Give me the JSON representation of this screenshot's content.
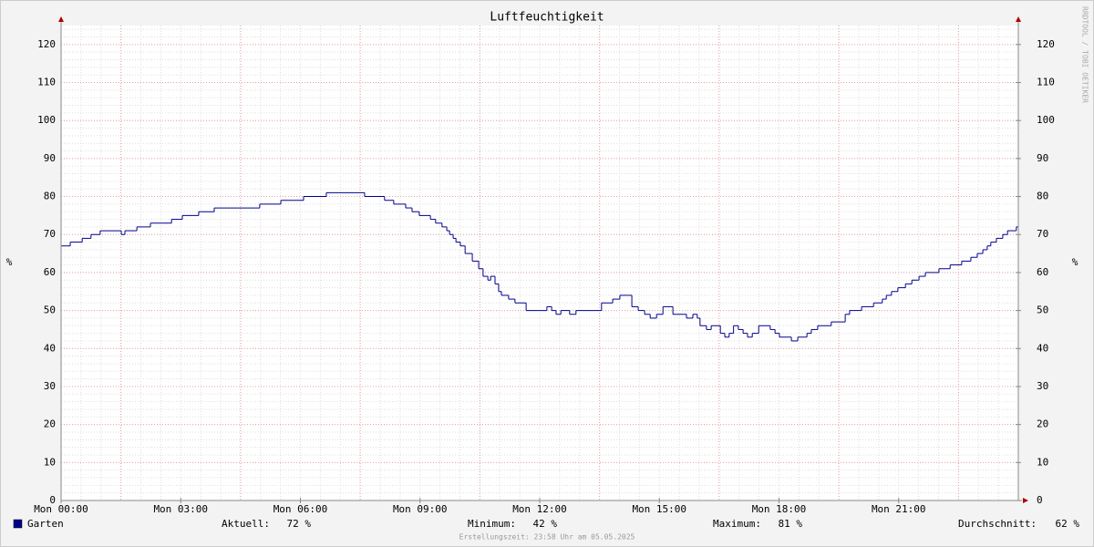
{
  "chart_data": {
    "type": "line",
    "title": "Luftfeuchtigkeit",
    "y_label": "%",
    "y2_label": "%",
    "watermark": "RRDTOOL / TOBI OETIKER",
    "x": [
      0,
      0.23,
      0.53,
      0.75,
      0.98,
      1.51,
      1.6,
      1.9,
      2.24,
      2.77,
      3.04,
      3.45,
      3.84,
      4.98,
      5.51,
      6.08,
      6.65,
      7.61,
      8.11,
      8.34,
      8.64,
      8.8,
      8.98,
      9.26,
      9.39,
      9.55,
      9.67,
      9.74,
      9.83,
      9.9,
      10.01,
      10.13,
      10.31,
      10.47,
      10.58,
      10.7,
      10.77,
      10.88,
      10.97,
      11.04,
      11.22,
      11.38,
      11.66,
      12.18,
      12.3,
      12.41,
      12.53,
      12.75,
      12.91,
      13.55,
      13.83,
      14.01,
      14.31,
      14.47,
      14.63,
      14.77,
      14.93,
      15.09,
      15.34,
      15.68,
      15.84,
      15.95,
      16.02,
      16.18,
      16.3,
      16.53,
      16.64,
      16.75,
      16.86,
      16.98,
      17.1,
      17.21,
      17.33,
      17.49,
      17.78,
      17.9,
      18.01,
      18.31,
      18.47,
      18.7,
      18.81,
      18.97,
      19.31,
      19.66,
      19.77,
      20.07,
      20.37,
      20.59,
      20.69,
      20.82,
      20.98,
      21.17,
      21.33,
      21.51,
      21.67,
      22.01,
      22.29,
      22.58,
      22.81,
      22.97,
      23.11,
      23.22,
      23.31,
      23.45,
      23.61,
      23.73,
      23.95
    ],
    "xlim": [
      0,
      24
    ],
    "xticks": [
      {
        "value": 0,
        "label": "Mon 00:00"
      },
      {
        "value": 3,
        "label": "Mon 03:00"
      },
      {
        "value": 6,
        "label": "Mon 06:00"
      },
      {
        "value": 9,
        "label": "Mon 09:00"
      },
      {
        "value": 12,
        "label": "Mon 12:00"
      },
      {
        "value": 15,
        "label": "Mon 15:00"
      },
      {
        "value": 18,
        "label": "Mon 18:00"
      },
      {
        "value": 21,
        "label": "Mon 21:00"
      }
    ],
    "ylim": [
      0,
      125
    ],
    "yticks": [
      0,
      10,
      20,
      30,
      40,
      50,
      60,
      70,
      80,
      90,
      100,
      110,
      120
    ],
    "y2lim": [
      0,
      125
    ],
    "y2ticks": [
      0,
      10,
      20,
      30,
      40,
      50,
      60,
      70,
      80,
      90,
      100,
      110,
      120
    ],
    "grid": true,
    "series": [
      {
        "name": "Garten",
        "color": "#00008b",
        "values": [
          67,
          68,
          69,
          70,
          71,
          70,
          71,
          72,
          73,
          74,
          75,
          76,
          77,
          78,
          79,
          80,
          81,
          80,
          79,
          78,
          77,
          76,
          75,
          74,
          73,
          72,
          71,
          70,
          69,
          68,
          67,
          65,
          63,
          61,
          59,
          58,
          59,
          57,
          55,
          54,
          53,
          52,
          50,
          51,
          50,
          49,
          50,
          49,
          50,
          52,
          53,
          54,
          51,
          50,
          49,
          48,
          49,
          51,
          49,
          48,
          49,
          48,
          46,
          45,
          46,
          44,
          43,
          44,
          46,
          45,
          44,
          43,
          44,
          46,
          45,
          44,
          43,
          42,
          43,
          44,
          45,
          46,
          47,
          49,
          50,
          51,
          52,
          53,
          54,
          55,
          56,
          57,
          58,
          59,
          60,
          61,
          62,
          63,
          64,
          65,
          66,
          67,
          68,
          69,
          70,
          71,
          72
        ]
      }
    ],
    "stats": [
      {
        "name": "Aktuell:",
        "text": "72 %"
      },
      {
        "name": "Minimum:",
        "text": "42 %"
      },
      {
        "name": "Maximum:",
        "text": "81 %"
      },
      {
        "name": "Durchschnitt:",
        "text": "62 %"
      }
    ],
    "footer": "Erstellungszeit: 23:58 Uhr am 05.05.2025"
  }
}
